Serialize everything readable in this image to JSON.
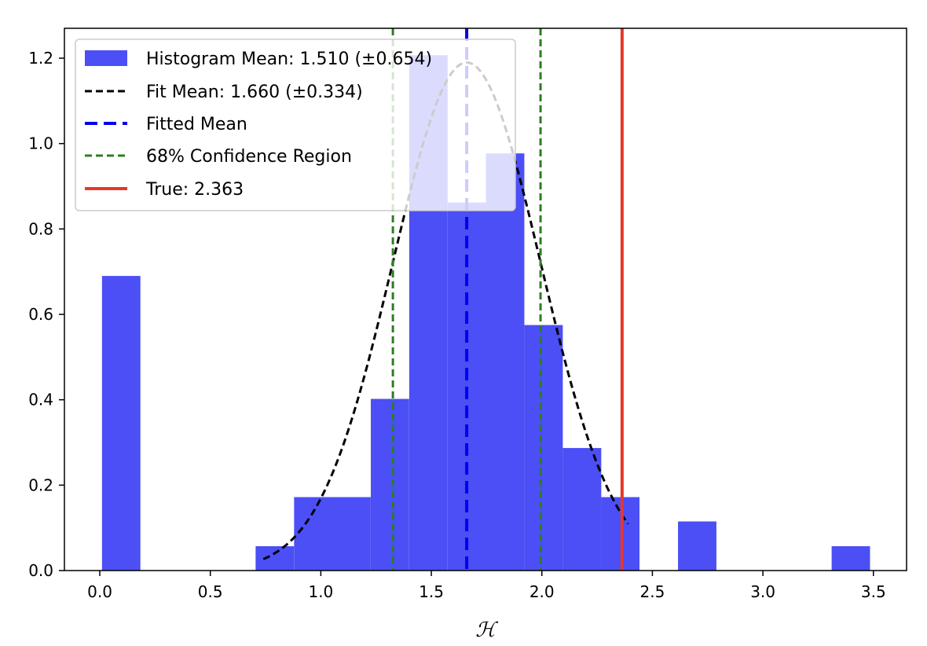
{
  "chart_data": {
    "type": "bar",
    "xlabel": "ℋ",
    "ylabel": "",
    "xlim": [
      -0.16,
      3.65
    ],
    "ylim": [
      0,
      1.27
    ],
    "xticks": [
      "0.0",
      "0.5",
      "1.0",
      "1.5",
      "2.0",
      "2.5",
      "3.0",
      "3.5"
    ],
    "yticks": [
      "0.0",
      "0.2",
      "0.4",
      "0.6",
      "0.8",
      "1.0",
      "1.2"
    ],
    "histogram": {
      "name": "Histogram Mean: 1.510 (±0.654)",
      "color": "#4b4ff5",
      "bin_width": 0.1737,
      "bins": [
        {
          "left": 0.01,
          "value": 0.69
        },
        {
          "left": 0.184,
          "value": 0.0
        },
        {
          "left": 0.358,
          "value": 0.0
        },
        {
          "left": 0.531,
          "value": 0.0
        },
        {
          "left": 0.705,
          "value": 0.057
        },
        {
          "left": 0.879,
          "value": 0.172
        },
        {
          "left": 1.052,
          "value": 0.172
        },
        {
          "left": 1.226,
          "value": 0.402
        },
        {
          "left": 1.4,
          "value": 1.207
        },
        {
          "left": 1.574,
          "value": 0.862
        },
        {
          "left": 1.747,
          "value": 0.977
        },
        {
          "left": 1.921,
          "value": 0.575
        },
        {
          "left": 2.095,
          "value": 0.287
        },
        {
          "left": 2.268,
          "value": 0.172
        },
        {
          "left": 2.442,
          "value": 0.0
        },
        {
          "left": 2.616,
          "value": 0.115
        },
        {
          "left": 2.789,
          "value": 0.0
        },
        {
          "left": 2.963,
          "value": 0.0
        },
        {
          "left": 3.137,
          "value": 0.0
        },
        {
          "left": 3.311,
          "value": 0.057
        }
      ]
    },
    "fit": {
      "name": "Fit Mean: 1.660 (±0.334)",
      "color": "#000000",
      "mean": 1.66,
      "sigma": 0.334,
      "peak": 1.19,
      "x_range": [
        0.74,
        2.39
      ]
    },
    "lines": [
      {
        "name": "Fitted Mean",
        "x": 1.66,
        "color": "#0000ee",
        "style": "dashed"
      },
      {
        "name": "68% Confidence Region",
        "x": 1.326,
        "color": "#2e7d22",
        "style": "dotted-dash"
      },
      {
        "name": "",
        "x": 1.994,
        "color": "#2e7d22",
        "style": "dotted-dash"
      },
      {
        "name": "True: 2.363",
        "x": 2.363,
        "color": "#e8362b",
        "style": "solid"
      }
    ],
    "legend": {
      "placement": "top-left",
      "entries": [
        "Histogram Mean: 1.510 (±0.654)",
        "Fit Mean: 1.660 (±0.334)",
        "Fitted Mean",
        "68% Confidence Region",
        "True: 2.363"
      ]
    },
    "grid": false
  }
}
